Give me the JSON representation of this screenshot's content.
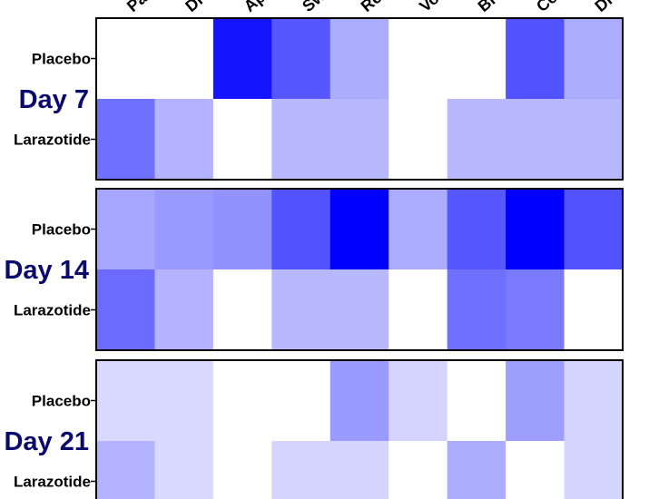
{
  "chart_data": {
    "type": "heatmap",
    "columns": [
      "Pa",
      "Di",
      "Ap",
      "Sw",
      "Re",
      "Vo",
      "Br",
      "Co",
      "Di"
    ],
    "rows": [
      "Placebo",
      "Larazotide"
    ],
    "low_color": "#ffffff",
    "high_color": "#0000ff",
    "panels": [
      {
        "label": "Day 7",
        "values": [
          [
            0,
            0,
            0.92,
            0.66,
            0.32,
            0,
            0,
            0.68,
            0.32
          ],
          [
            0.56,
            0.3,
            0,
            0.28,
            0.28,
            0,
            0.28,
            0.28,
            0.28
          ]
        ]
      },
      {
        "label": "Day 14",
        "values": [
          [
            0.35,
            0.4,
            0.43,
            0.68,
            1.0,
            0.33,
            0.66,
            1.0,
            0.68
          ],
          [
            0.58,
            0.3,
            0,
            0.28,
            0.28,
            0,
            0.56,
            0.52,
            0
          ]
        ]
      },
      {
        "label": "Day 21",
        "values": [
          [
            0.15,
            0.15,
            0,
            0,
            0.4,
            0.17,
            0,
            0.38,
            0.17
          ],
          [
            0.3,
            0.15,
            0,
            0.17,
            0.17,
            0,
            0.32,
            0,
            0.17
          ]
        ]
      }
    ]
  }
}
